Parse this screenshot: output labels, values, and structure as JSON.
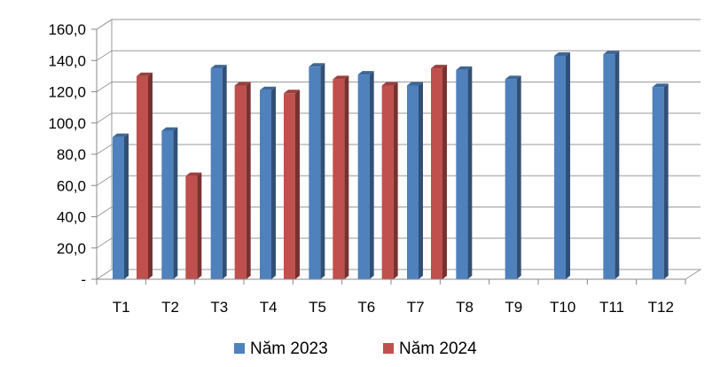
{
  "chart_data": {
    "type": "bar",
    "categories": [
      "T1",
      "T2",
      "T3",
      "T4",
      "T5",
      "T6",
      "T7",
      "T8",
      "T9",
      "T10",
      "T11",
      "T12"
    ],
    "series": [
      {
        "name": "Năm 2023",
        "color": "#4F81BD",
        "values": [
          91,
          95,
          135,
          121,
          136,
          131,
          124,
          134,
          128,
          143,
          144,
          123
        ]
      },
      {
        "name": "Năm 2024",
        "color": "#C0504D",
        "values": [
          130,
          66,
          124,
          119,
          128,
          124,
          135,
          null,
          null,
          null,
          null,
          null
        ]
      }
    ],
    "yticks": [
      "-",
      "20,0",
      "40,0",
      "60,0",
      "80,0",
      "100,0",
      "120,0",
      "140,0",
      "160,0"
    ],
    "ylim": [
      0,
      160
    ],
    "grid": true,
    "legend_position": "bottom"
  }
}
